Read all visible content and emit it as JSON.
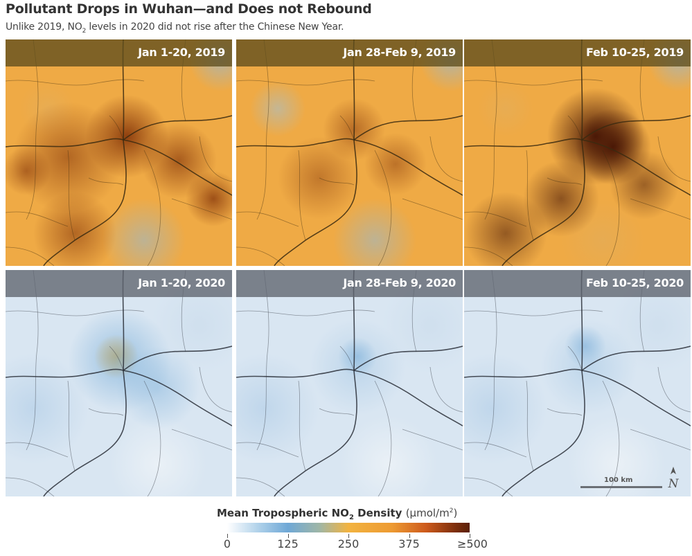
{
  "header": {
    "title": "Pollutant Drops in Wuhan—and Does not Rebound",
    "subtitle_pre": "Unlike 2019, NO",
    "subtitle_sub": "2",
    "subtitle_post": " levels in 2020 did not rise after the Chinese New Year."
  },
  "panels": [
    {
      "label": "Jan 1-20, 2019",
      "year": "2019",
      "intensity": 0.78
    },
    {
      "label": "Jan 28-Feb 9, 2019",
      "year": "2019",
      "intensity": 0.62
    },
    {
      "label": "Feb 10-25, 2019",
      "year": "2019",
      "intensity": 0.95
    },
    {
      "label": "Jan 1-20, 2020",
      "year": "2020",
      "intensity": 0.3
    },
    {
      "label": "Jan 28-Feb 9, 2020",
      "year": "2020",
      "intensity": 0.18
    },
    {
      "label": "Feb 10-25, 2020",
      "year": "2020",
      "intensity": 0.16
    }
  ],
  "scale": {
    "label": "100 km",
    "north_symbol": "N"
  },
  "legend": {
    "title_pre": "Mean Tropospheric NO",
    "title_sub": "2",
    "title_post": " Density",
    "units_pre": "(μmol/m",
    "units_sup": "2",
    "units_post": ")",
    "ticks": [
      "0",
      "125",
      "250",
      "375",
      "≥500"
    ],
    "min": 0,
    "max": 500
  },
  "colors": {
    "band_2019": "#5f4e1e",
    "band_2020": "#5f646e",
    "low": "#ffffff",
    "mid_blue": "#6fa8d6",
    "mid_orange": "#f2b340",
    "high": "#5a1f07"
  }
}
